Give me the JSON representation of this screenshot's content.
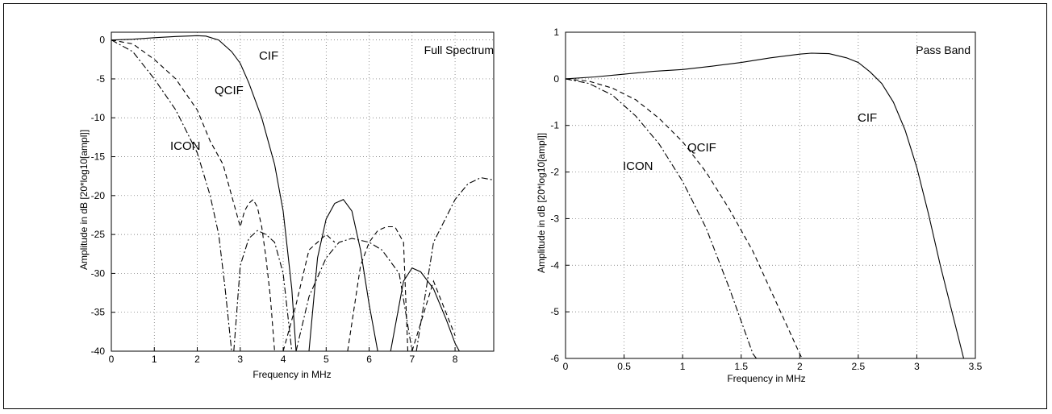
{
  "chart_data": [
    {
      "type": "line",
      "title": "Full Spectrum",
      "xlabel": "Frequency in MHz",
      "ylabel": "Amplitude in dB [20*log10[ampl]]",
      "xlim": [
        0,
        8.9
      ],
      "ylim": [
        -40,
        1
      ],
      "xticks": [
        "0",
        "1",
        "2",
        "3",
        "4",
        "5",
        "6",
        "7",
        "8"
      ],
      "yticks": [
        "0",
        "-5",
        "-10",
        "-15",
        "-20",
        "-25",
        "-30",
        "-35",
        "-40"
      ],
      "grid": true,
      "series": [
        {
          "name": "CIF",
          "style": "solid",
          "x": [
            0,
            0.5,
            1.0,
            1.5,
            2.0,
            2.2,
            2.5,
            2.8,
            3.0,
            3.2,
            3.5,
            3.8,
            4.0,
            4.2,
            4.3,
            null,
            4.6,
            4.8,
            5.0,
            5.2,
            5.4,
            5.6,
            5.8,
            6.0,
            6.2,
            null,
            6.5,
            6.8,
            7.0,
            7.2,
            7.5,
            7.8,
            8.0,
            8.1
          ],
          "y": [
            0,
            0.1,
            0.3,
            0.45,
            0.55,
            0.5,
            0,
            -1.5,
            -3,
            -5.5,
            -10,
            -16,
            -22,
            -32,
            -40,
            null,
            -40,
            -28,
            -23,
            -21,
            -20.5,
            -22,
            -27,
            -34,
            -40,
            null,
            -40,
            -31,
            -29.3,
            -29.8,
            -32,
            -36,
            -39,
            -40
          ]
        },
        {
          "name": "QCIF",
          "style": "dashed",
          "x": [
            0,
            0.5,
            1.0,
            1.5,
            2.0,
            2.3,
            2.6,
            2.8,
            3.0,
            3.1,
            3.2,
            3.3,
            3.4,
            3.5,
            3.6,
            3.7,
            3.8,
            null,
            4.0,
            4.3,
            4.6,
            5.0,
            5.2,
            null,
            5.5,
            5.8,
            6.0,
            6.2,
            6.4,
            6.6,
            6.8,
            6.9,
            null,
            7.0,
            7.5,
            8.0
          ],
          "y": [
            0,
            -0.5,
            -2.5,
            -5,
            -9,
            -13,
            -16,
            -20,
            -24,
            -22,
            -21,
            -20.5,
            -21.5,
            -24,
            -28,
            -33,
            -40,
            null,
            -40,
            -34,
            -27,
            -25,
            -26,
            null,
            -40,
            -29,
            -26,
            -24.5,
            -24,
            -24,
            -26,
            -40,
            null,
            -40,
            -31,
            -38
          ]
        },
        {
          "name": "ICON",
          "style": "dash-dot",
          "x": [
            0,
            0.5,
            1.0,
            1.5,
            2.0,
            2.3,
            2.5,
            2.65,
            2.8,
            null,
            2.85,
            3.0,
            3.2,
            3.4,
            3.6,
            3.8,
            4.0,
            4.2,
            null,
            4.3,
            4.6,
            5.0,
            5.3,
            5.6,
            6.0,
            6.3,
            6.7,
            7.0,
            null,
            7.1,
            7.5,
            8.0,
            8.3,
            8.6,
            8.9
          ],
          "y": [
            0,
            -1.5,
            -5,
            -9,
            -14.5,
            -20,
            -25,
            -32,
            -40,
            null,
            -40,
            -29,
            -25.5,
            -24.5,
            -25,
            -26,
            -30,
            -40,
            null,
            -40,
            -33,
            -28,
            -26,
            -25.5,
            -26,
            -27,
            -30,
            -40,
            null,
            -40,
            -26,
            -20.5,
            -18.5,
            -17.7,
            -18
          ]
        }
      ],
      "annotations": [
        "CIF",
        "QCIF",
        "ICON",
        "Full Spectrum"
      ]
    },
    {
      "type": "line",
      "title": "Pass Band",
      "xlabel": "Frequency in MHz",
      "ylabel": "Amplitude in dB [20*log10[ampl]]",
      "xlim": [
        0,
        3.5
      ],
      "ylim": [
        -6,
        1
      ],
      "xticks": [
        "0",
        "0.5",
        "1",
        "1.5",
        "2",
        "2.5",
        "3",
        "3.5"
      ],
      "yticks": [
        "1",
        "0",
        "-1",
        "-2",
        "-3",
        "-4",
        "-5",
        "-6"
      ],
      "grid": true,
      "series": [
        {
          "name": "CIF",
          "style": "solid",
          "x": [
            0,
            0.25,
            0.5,
            0.75,
            1.0,
            1.25,
            1.5,
            1.75,
            2.0,
            2.1,
            2.25,
            2.4,
            2.5,
            2.6,
            2.7,
            2.8,
            2.9,
            3.0,
            3.1,
            3.2,
            3.3,
            3.4
          ],
          "y": [
            0,
            0.04,
            0.1,
            0.16,
            0.2,
            0.27,
            0.35,
            0.45,
            0.53,
            0.55,
            0.54,
            0.45,
            0.35,
            0.15,
            -0.1,
            -0.5,
            -1.1,
            -1.9,
            -2.9,
            -4.0,
            -5.0,
            -6.0
          ]
        },
        {
          "name": "QCIF",
          "style": "dashed",
          "x": [
            0,
            0.2,
            0.4,
            0.6,
            0.8,
            1.0,
            1.2,
            1.4,
            1.6,
            1.8,
            2.0,
            2.02
          ],
          "y": [
            0,
            -0.05,
            -0.2,
            -0.45,
            -0.85,
            -1.35,
            -2.0,
            -2.8,
            -3.7,
            -4.8,
            -5.9,
            -6.0
          ]
        },
        {
          "name": "ICON",
          "style": "dash-dot",
          "x": [
            0,
            0.2,
            0.4,
            0.6,
            0.8,
            1.0,
            1.2,
            1.4,
            1.6,
            1.63
          ],
          "y": [
            0,
            -0.1,
            -0.35,
            -0.8,
            -1.4,
            -2.2,
            -3.2,
            -4.5,
            -5.9,
            -6.0
          ]
        }
      ],
      "annotations": [
        "CIF",
        "QCIF",
        "ICON",
        "Pass Band"
      ]
    }
  ]
}
